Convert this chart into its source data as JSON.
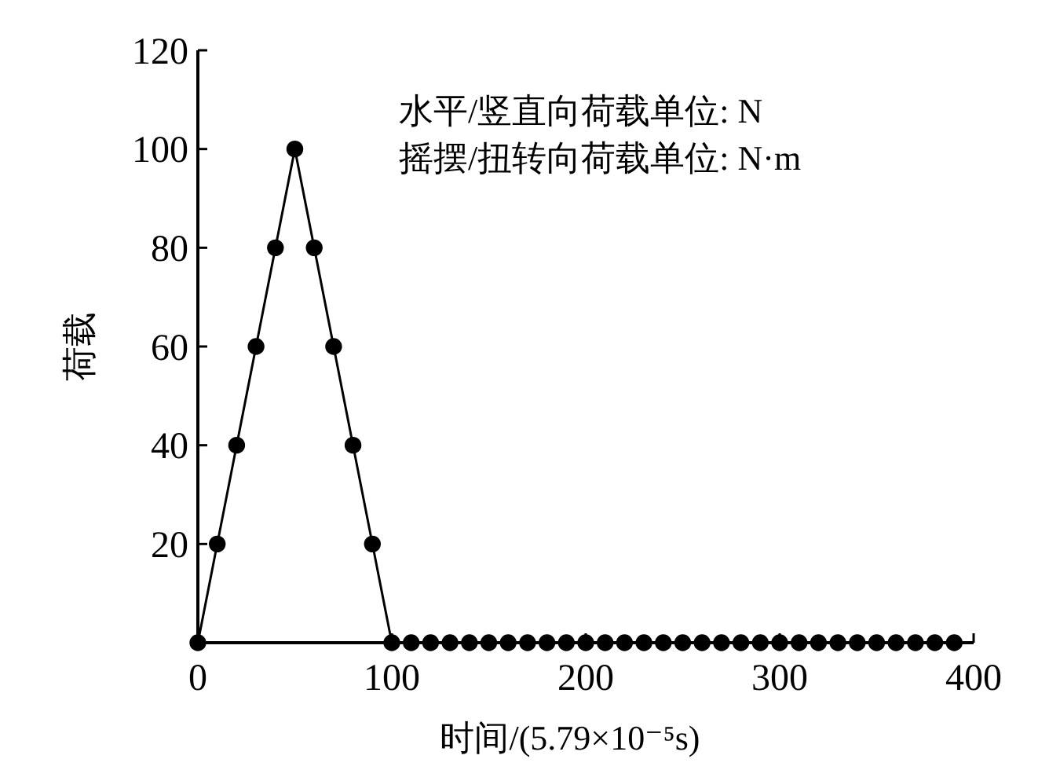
{
  "chart_data": {
    "type": "line",
    "xlabel": "时间/(5.79×10⁻⁵s)",
    "ylabel": "荷载",
    "annotations": [
      "水平/竖直向荷载单位: N",
      "摇摆/扭转向荷载单位: N·m"
    ],
    "x": [
      0,
      10,
      20,
      30,
      40,
      50,
      60,
      70,
      80,
      90,
      100,
      110,
      120,
      130,
      140,
      150,
      160,
      170,
      180,
      190,
      200,
      210,
      220,
      230,
      240,
      250,
      260,
      270,
      280,
      290,
      300,
      310,
      320,
      330,
      340,
      350,
      360,
      370,
      380,
      390
    ],
    "series": [
      {
        "color": "#000000",
        "values": [
          0,
          20,
          40,
          60,
          80,
          100,
          80,
          60,
          40,
          20,
          0,
          0,
          0,
          0,
          0,
          0,
          0,
          0,
          0,
          0,
          0,
          0,
          0,
          0,
          0,
          0,
          0,
          0,
          0,
          0,
          0,
          0,
          0,
          0,
          0,
          0,
          0,
          0,
          0,
          0
        ]
      }
    ],
    "xlim": [
      0,
      400
    ],
    "xticks": [
      0,
      100,
      200,
      300,
      400
    ],
    "ylim": [
      0,
      120
    ],
    "yticks": [
      20,
      40,
      60,
      80,
      100,
      120
    ],
    "marker": "circle",
    "line_style": "solid"
  }
}
